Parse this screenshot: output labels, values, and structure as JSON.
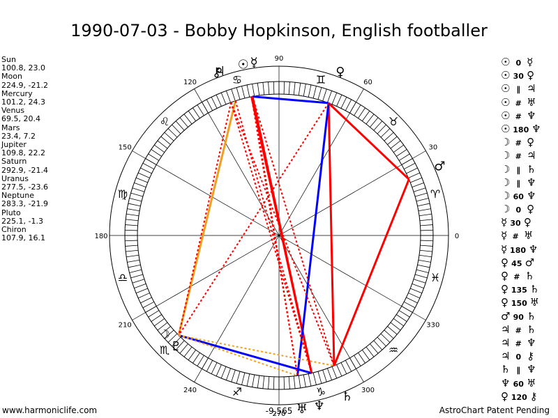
{
  "title": "1990-07-03 - Bobby Hopkinson, English footballer",
  "planets": [
    {
      "name": "Sun",
      "coords": "100.8, 23.0"
    },
    {
      "name": "Moon",
      "coords": "224.9, -21.2"
    },
    {
      "name": "Mercury",
      "coords": "101.2, 24.3"
    },
    {
      "name": "Venus",
      "coords": "69.5, 20.4"
    },
    {
      "name": "Mars",
      "coords": "23.4, 7.2"
    },
    {
      "name": "Jupiter",
      "coords": "109.8, 22.2"
    },
    {
      "name": "Saturn",
      "coords": "292.9, -21.4"
    },
    {
      "name": "Uranus",
      "coords": "277.5, -23.6"
    },
    {
      "name": "Neptune",
      "coords": "283.3, -21.9"
    },
    {
      "name": "Pluto",
      "coords": "225.1, -1.3"
    },
    {
      "name": "Chiron",
      "coords": "107.9, 16.1"
    }
  ],
  "aspects": [
    {
      "p1": "☉",
      "asp": "0",
      "p2": "☿"
    },
    {
      "p1": "☉",
      "asp": "30",
      "p2": "♀"
    },
    {
      "p1": "☉",
      "asp": "∥",
      "p2": "♃"
    },
    {
      "p1": "☉",
      "asp": "#",
      "p2": "♅"
    },
    {
      "p1": "☉",
      "asp": "#",
      "p2": "♆"
    },
    {
      "p1": "☉",
      "asp": "180",
      "p2": "♆"
    },
    {
      "p1": "☽",
      "asp": "#",
      "p2": "♀"
    },
    {
      "p1": "☽",
      "asp": "#",
      "p2": "♃"
    },
    {
      "p1": "☽",
      "asp": "∥",
      "p2": "♄"
    },
    {
      "p1": "☽",
      "asp": "∥",
      "p2": "♆"
    },
    {
      "p1": "☽",
      "asp": "60",
      "p2": "♆"
    },
    {
      "p1": "☽",
      "asp": "0",
      "p2": "♀"
    },
    {
      "p1": "☿",
      "asp": "30",
      "p2": "♀"
    },
    {
      "p1": "☿",
      "asp": "#",
      "p2": "♅"
    },
    {
      "p1": "☿",
      "asp": "180",
      "p2": "♆"
    },
    {
      "p1": "♀",
      "asp": "45",
      "p2": "♂"
    },
    {
      "p1": "♀",
      "asp": "#",
      "p2": "♄"
    },
    {
      "p1": "♀",
      "asp": "135",
      "p2": "♄"
    },
    {
      "p1": "♀",
      "asp": "150",
      "p2": "♅"
    },
    {
      "p1": "♂",
      "asp": "90",
      "p2": "♄"
    },
    {
      "p1": "♃",
      "asp": "#",
      "p2": "♄"
    },
    {
      "p1": "♃",
      "asp": "#",
      "p2": "♆"
    },
    {
      "p1": "♃",
      "asp": "0",
      "p2": "⚷"
    },
    {
      "p1": "♄",
      "asp": "∥",
      "p2": "♆"
    },
    {
      "p1": "♆",
      "asp": "60",
      "p2": "♅"
    },
    {
      "p1": "♀",
      "asp": "120",
      "p2": "⚷"
    }
  ],
  "wheel": {
    "degree_labels": [
      {
        "deg": 0,
        "text": "0"
      },
      {
        "deg": 30,
        "text": "30"
      },
      {
        "deg": 60,
        "text": "60"
      },
      {
        "deg": 90,
        "text": "90"
      },
      {
        "deg": 120,
        "text": "120"
      },
      {
        "deg": 150,
        "text": "150"
      },
      {
        "deg": 180,
        "text": "180"
      },
      {
        "deg": 210,
        "text": "210"
      },
      {
        "deg": 240,
        "text": "240"
      },
      {
        "deg": 270,
        "text": "270"
      },
      {
        "deg": 300,
        "text": "300"
      },
      {
        "deg": 330,
        "text": "330"
      }
    ],
    "signs": [
      {
        "deg": 15,
        "glyph": "♈"
      },
      {
        "deg": 45,
        "glyph": "♉"
      },
      {
        "deg": 75,
        "glyph": "♊"
      },
      {
        "deg": 105,
        "glyph": "♋"
      },
      {
        "deg": 135,
        "glyph": "♌"
      },
      {
        "deg": 165,
        "glyph": "♍"
      },
      {
        "deg": 195,
        "glyph": "♎"
      },
      {
        "deg": 225,
        "glyph": "♏"
      },
      {
        "deg": 255,
        "glyph": "♐"
      },
      {
        "deg": 285,
        "glyph": "♑"
      },
      {
        "deg": 315,
        "glyph": "♒"
      },
      {
        "deg": 345,
        "glyph": "♓"
      }
    ],
    "bodies": [
      {
        "id": "sun",
        "glyph": "☉",
        "lon": 100.8
      },
      {
        "id": "moon",
        "glyph": "☽",
        "lon": 224.9
      },
      {
        "id": "mercury",
        "glyph": "☿",
        "lon": 101.2
      },
      {
        "id": "venus",
        "glyph": "♀",
        "lon": 69.5
      },
      {
        "id": "mars",
        "glyph": "♂",
        "lon": 23.4
      },
      {
        "id": "jupiter",
        "glyph": "♃",
        "lon": 109.8
      },
      {
        "id": "saturn",
        "glyph": "♄",
        "lon": 292.9
      },
      {
        "id": "uranus",
        "glyph": "♅",
        "lon": 277.5
      },
      {
        "id": "neptune",
        "glyph": "♆",
        "lon": 283.3
      },
      {
        "id": "pluto",
        "glyph": "♇",
        "lon": 225.1
      },
      {
        "id": "chiron",
        "glyph": "⚷",
        "lon": 107.9
      }
    ],
    "aspect_lines": [
      {
        "a": "venus",
        "b": "mars",
        "style": "solid",
        "color": "#ff0000"
      },
      {
        "a": "mars",
        "b": "saturn",
        "style": "solid",
        "color": "#ff0000"
      },
      {
        "a": "venus",
        "b": "saturn",
        "style": "solid",
        "color": "#ff0000"
      },
      {
        "a": "sun",
        "b": "neptune",
        "style": "solid",
        "color": "#ff0000"
      },
      {
        "a": "mercury",
        "b": "neptune",
        "style": "solid",
        "color": "#ff0000"
      },
      {
        "a": "venus",
        "b": "uranus",
        "style": "solid",
        "color": "#0000ff"
      },
      {
        "a": "sun",
        "b": "venus",
        "style": "solid",
        "color": "#0000ff"
      },
      {
        "a": "moon",
        "b": "neptune",
        "style": "solid",
        "color": "#0000ff"
      },
      {
        "a": "chiron",
        "b": "moon",
        "style": "solid",
        "color": "#f0a020"
      },
      {
        "a": "sun",
        "b": "uranus",
        "style": "dotted",
        "color": "#ff0000"
      },
      {
        "a": "mercury",
        "b": "uranus",
        "style": "dotted",
        "color": "#ff0000"
      },
      {
        "a": "jupiter",
        "b": "saturn",
        "style": "dotted",
        "color": "#ff0000"
      },
      {
        "a": "jupiter",
        "b": "neptune",
        "style": "dotted",
        "color": "#ff0000"
      },
      {
        "a": "sun",
        "b": "saturn",
        "style": "dotted",
        "color": "#ff0000"
      },
      {
        "a": "chiron",
        "b": "neptune",
        "style": "dotted",
        "color": "#ff0000"
      },
      {
        "a": "venus",
        "b": "moon",
        "style": "dotted",
        "color": "#ff0000"
      },
      {
        "a": "jupiter",
        "b": "moon",
        "style": "dotted",
        "color": "#ff0000"
      },
      {
        "a": "moon",
        "b": "saturn",
        "style": "dotted",
        "color": "#f0a020"
      },
      {
        "a": "moon",
        "b": "uranus",
        "style": "dotted",
        "color": "#f0a020"
      }
    ],
    "bottom_value": "-9,565"
  },
  "footer": {
    "left": "www.harmoniclife.com",
    "right": "AstroChart Patent Pending"
  }
}
